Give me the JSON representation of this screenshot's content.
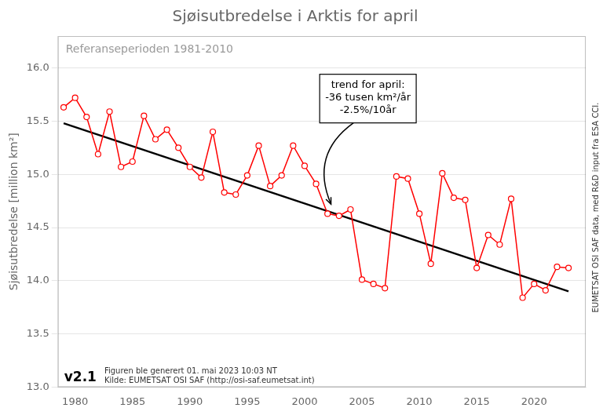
{
  "chart_data": {
    "type": "line",
    "title": "Sjøisutbredelse i Arktis for april",
    "ylabel": "Sjøisutbredelse [million km²]",
    "reference_text": "Referanseperioden 1981-2010",
    "right_label": "EUMETSAT OSI SAF data, med R&D input fra ESA CCI.",
    "version_text": "v2.1",
    "footer": [
      "Figuren ble generert 01. mai 2023 10:03 NT",
      "Kilde: EUMETSAT OSI SAF (http://osi-saf.eumetsat.int)"
    ],
    "annotations": [
      {
        "text": "trend for april:\n-36 tusen km²/år\n-2.5%/10år",
        "x": 2002.3,
        "y": 14.72
      }
    ],
    "series": [
      {
        "x": [
          1979,
          1980,
          1981,
          1982,
          1983,
          1984,
          1985,
          1986,
          1987,
          1988,
          1989,
          1990,
          1991,
          1992,
          1993,
          1994,
          1995,
          1996,
          1997,
          1998,
          1999,
          2000,
          2001,
          2002,
          2003,
          2004,
          2005,
          2006,
          2007,
          2008,
          2009,
          2010,
          2011,
          2012,
          2013,
          2014,
          2015,
          2016,
          2017,
          2018,
          2019,
          2020,
          2021,
          2022,
          2023
        ],
        "values": [
          15.63,
          15.72,
          15.54,
          15.19,
          15.59,
          15.07,
          15.12,
          15.55,
          15.33,
          15.42,
          15.25,
          15.07,
          14.97,
          15.4,
          14.83,
          14.81,
          14.99,
          15.27,
          14.89,
          14.99,
          15.27,
          15.08,
          14.91,
          14.63,
          14.61,
          14.67,
          14.01,
          13.97,
          13.93,
          14.98,
          14.96,
          14.63,
          14.16,
          15.01,
          14.78,
          14.76,
          14.12,
          14.43,
          14.34,
          14.77,
          13.84,
          13.97,
          13.91,
          14.13,
          14.12
        ],
        "color": "red",
        "marker": "open_circle",
        "line_style": "solid"
      },
      {
        "x": [
          1979,
          2023
        ],
        "values": [
          15.48,
          13.9
        ],
        "color": "black",
        "marker": "none",
        "line_style": "solid"
      }
    ],
    "xlim": [
      1978.5,
      2024.5
    ],
    "xticks": [
      1980,
      1985,
      1990,
      1995,
      2000,
      2005,
      2010,
      2015,
      2020
    ],
    "ylim": [
      13.0,
      16.3
    ],
    "yticks": [
      {
        "value": 13,
        "label": "13.0"
      },
      13.5,
      {
        "value": 14,
        "label": "14.0"
      },
      14.5,
      {
        "value": 15,
        "label": "15.0"
      },
      15.5,
      {
        "value": 16,
        "label": "16.0"
      }
    ],
    "grid": "y"
  }
}
